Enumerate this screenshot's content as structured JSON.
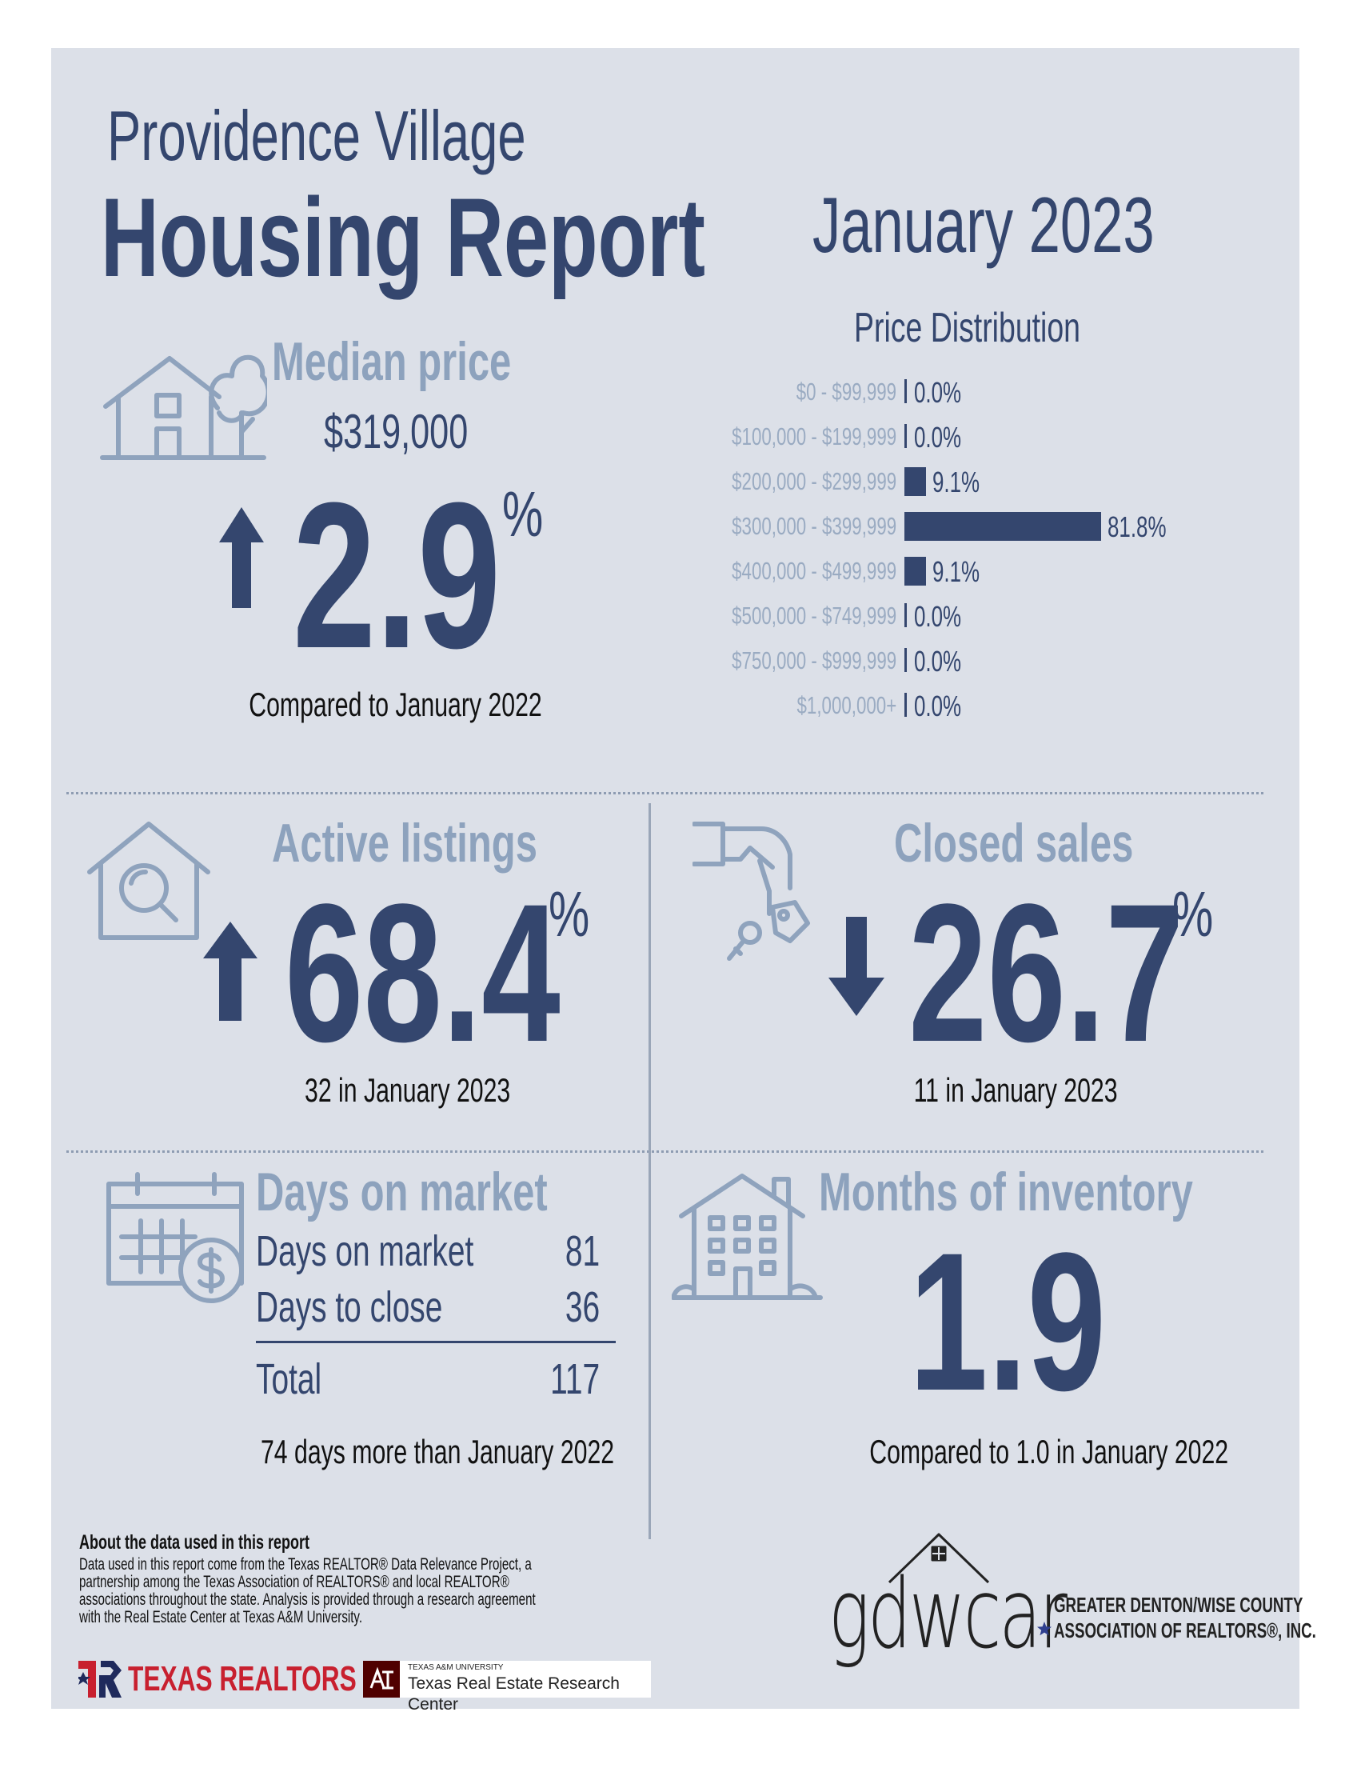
{
  "header": {
    "city": "Providence Village",
    "title": "Housing Report",
    "month": "January 2023"
  },
  "median_price": {
    "heading": "Median price",
    "value": "$319,000",
    "change": "2.9",
    "pct": "%",
    "direction": "up",
    "caption": "Compared to January 2022"
  },
  "price_distribution": {
    "heading": "Price Distribution",
    "rows": [
      {
        "label": "$0 - $99,999",
        "value": "0.0%"
      },
      {
        "label": "$100,000 - $199,999",
        "value": "0.0%"
      },
      {
        "label": "$200,000 - $299,999",
        "value": "9.1%"
      },
      {
        "label": "$300,000 - $399,999",
        "value": "81.8%"
      },
      {
        "label": "$400,000 - $499,999",
        "value": "9.1%"
      },
      {
        "label": "$500,000 - $749,999",
        "value": "0.0%"
      },
      {
        "label": "$750,000 - $999,999",
        "value": "0.0%"
      },
      {
        "label": "$1,000,000+",
        "value": "0.0%"
      }
    ]
  },
  "chart_data": {
    "type": "bar",
    "title": "Price Distribution",
    "categories": [
      "$0 - $99,999",
      "$100,000 - $199,999",
      "$200,000 - $299,999",
      "$300,000 - $399,999",
      "$400,000 - $499,999",
      "$500,000 - $749,999",
      "$750,000 - $999,999",
      "$1,000,000+"
    ],
    "values": [
      0.0,
      0.0,
      9.1,
      81.8,
      9.1,
      0.0,
      0.0,
      0.0
    ],
    "orientation": "horizontal",
    "unit": "%"
  },
  "active_listings": {
    "heading": "Active listings",
    "change": "68.4",
    "pct": "%",
    "direction": "up",
    "caption": "32 in January 2023"
  },
  "closed_sales": {
    "heading": "Closed sales",
    "change": "26.7",
    "pct": "%",
    "direction": "down",
    "caption": "11 in January 2023"
  },
  "days_on_market": {
    "heading": "Days on market",
    "rows": [
      {
        "label": "Days on market",
        "value": "81"
      },
      {
        "label": "Days to close",
        "value": "36"
      }
    ],
    "total_label": "Total",
    "total_value": "117",
    "caption": "74 days more than January 2022"
  },
  "months_inventory": {
    "heading": "Months of inventory",
    "value": "1.9",
    "caption": "Compared to 1.0 in January 2022"
  },
  "footer": {
    "about_title": "About the data used in this report",
    "about_lines": [
      "Data used in this report come from the Texas REALTOR® Data Relevance Project, a",
      "partnership among the Texas Association of REALTORS® and local REALTOR®",
      "associations throughout the state. Analysis is provided through a research agreement",
      "with the Real Estate Center at Texas A&M University."
    ],
    "texas_realtors": "TEXAS REALTORS",
    "tamu_small": "TEXAS A&M UNIVERSITY",
    "tamu_name": "Texas Real Estate Research Center",
    "gdwcar_logo": "gdwcar",
    "gdwcar_line1": "GREATER DENTON/WISE COUNTY",
    "gdwcar_line2": "ASSOCIATION OF REALTORS®, INC."
  },
  "colors": {
    "panel_bg": "#dce0e8",
    "navy": "#34466e",
    "pale_blue": "#8da2bd",
    "icon_stroke": "#8fa3bd",
    "texas_realtors_red": "#c8202f",
    "tamu_maroon": "#500000"
  }
}
